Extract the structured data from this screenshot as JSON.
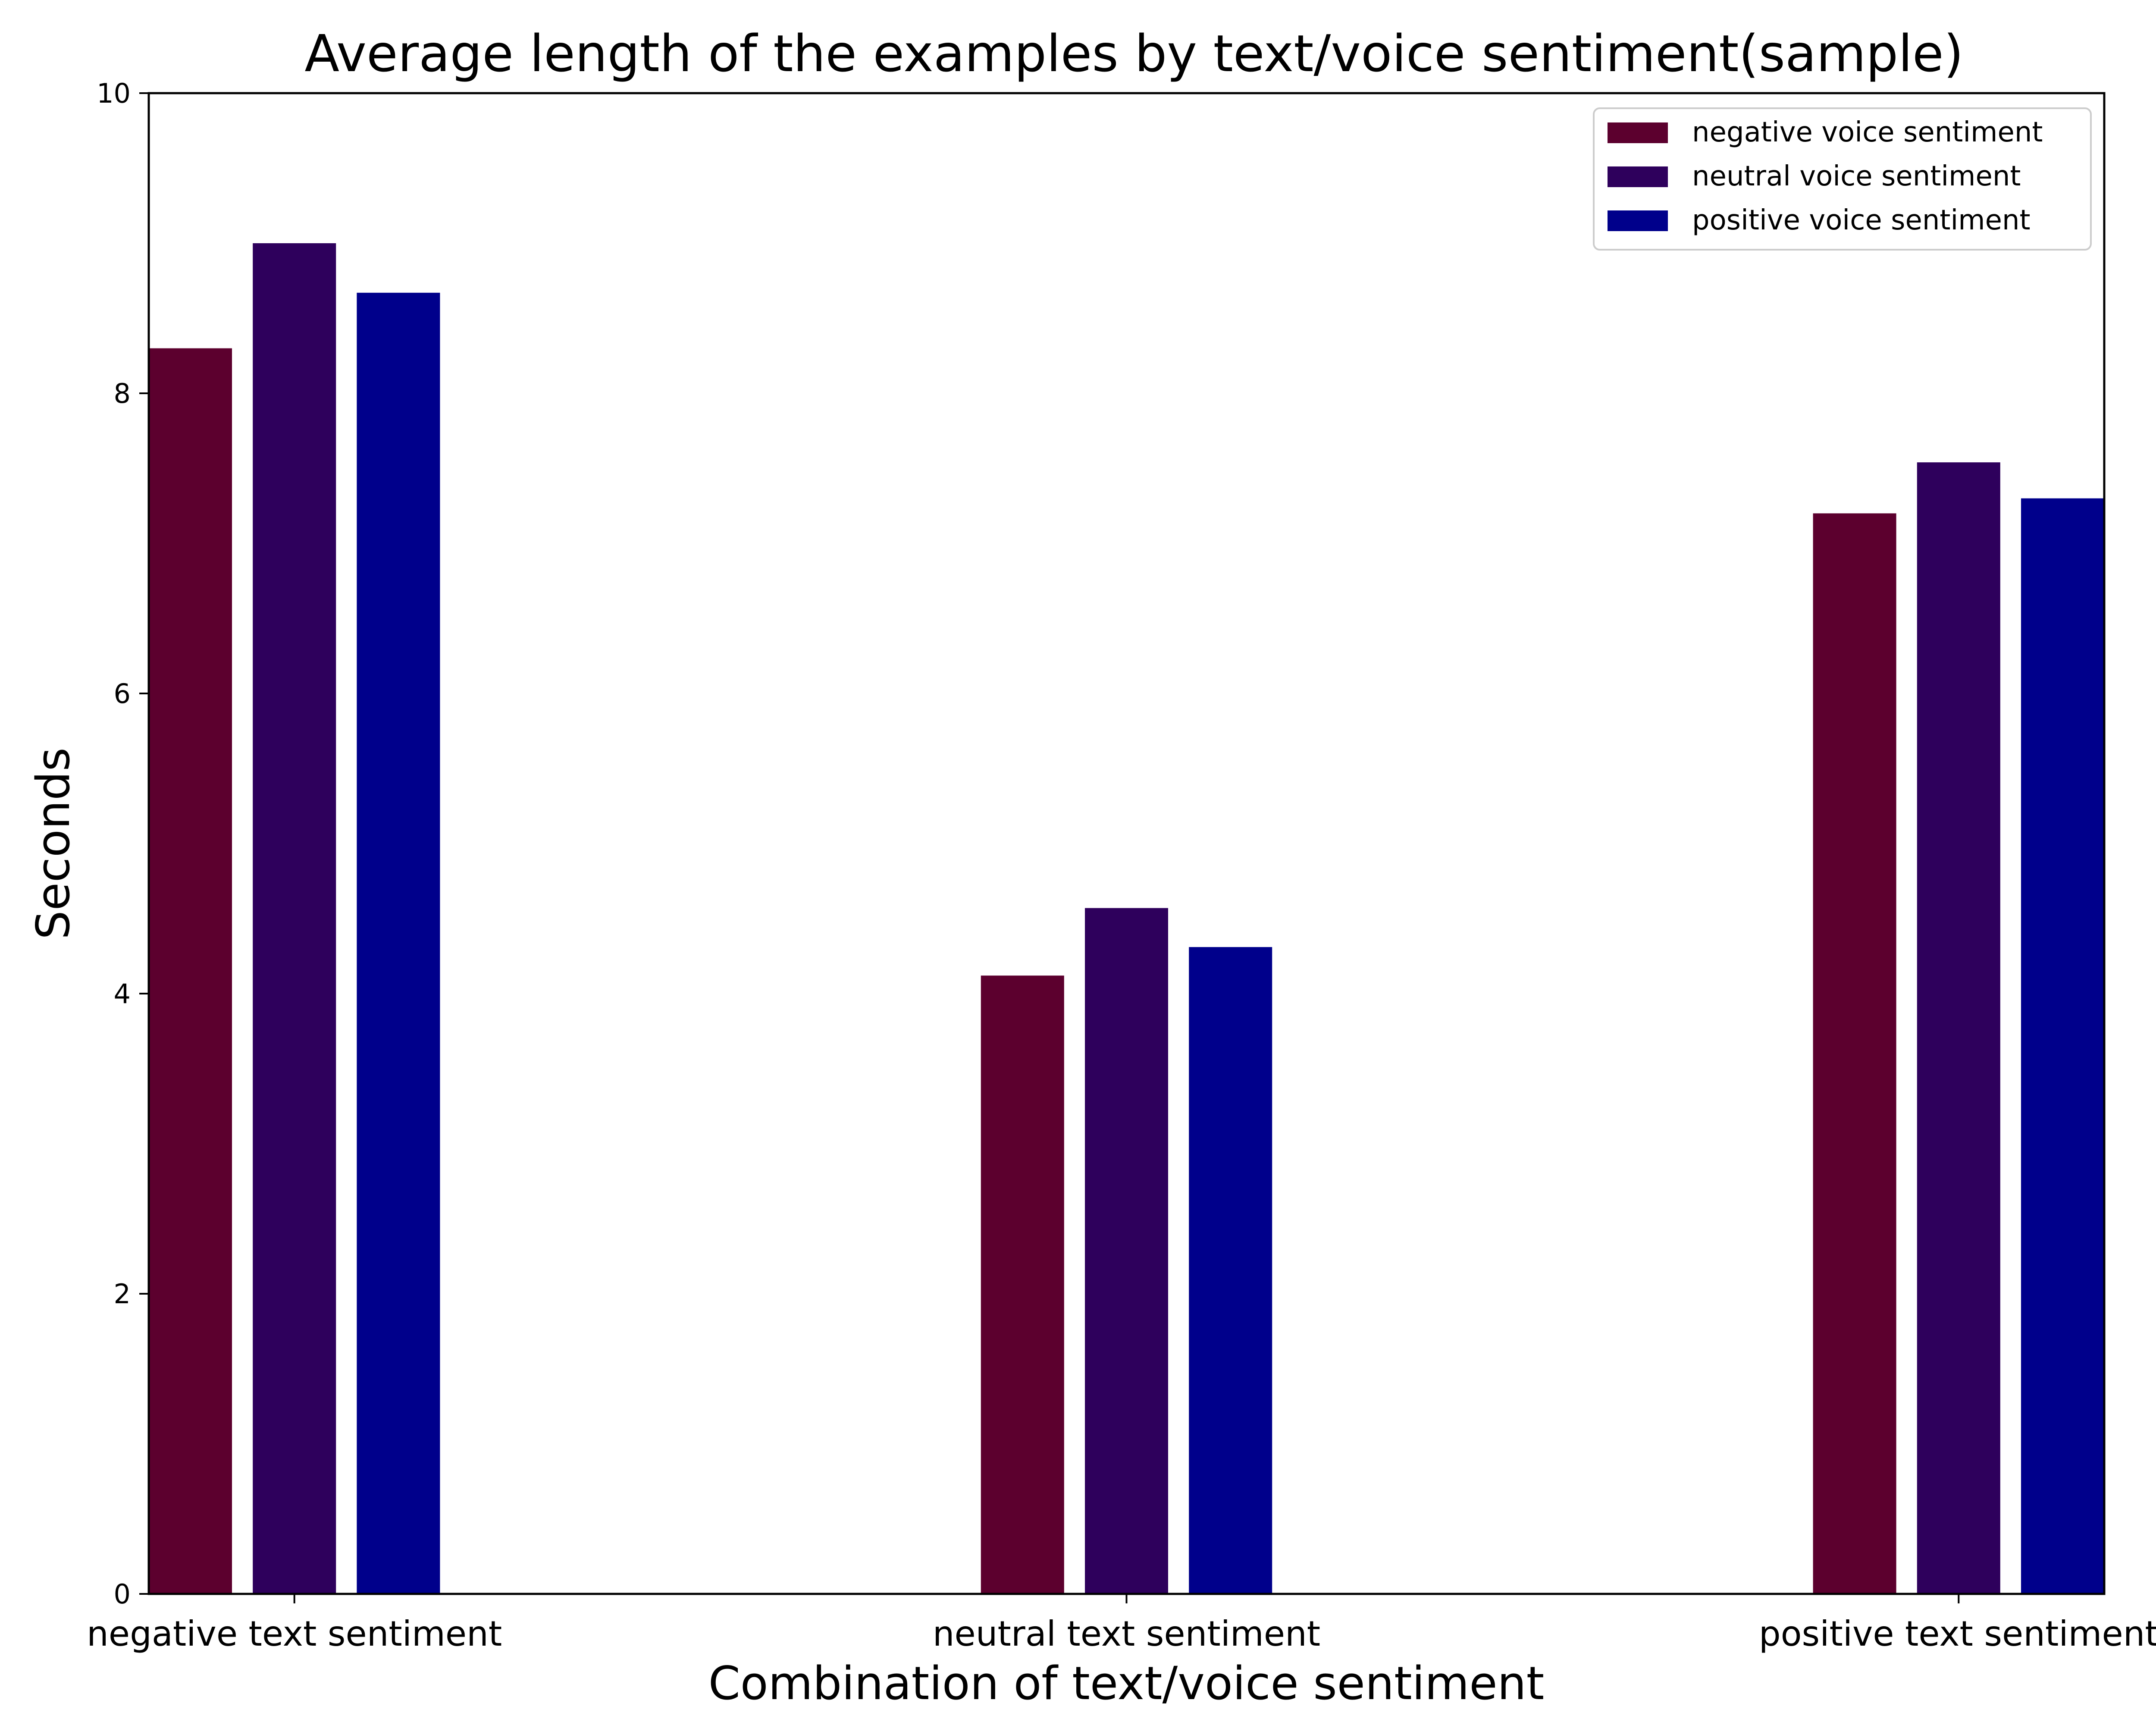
{
  "chart_data": {
    "type": "bar",
    "title": "Average length of the examples by text/voice sentiment(sample)",
    "xlabel": "Combination of text/voice sentiment",
    "ylabel": "Seconds",
    "ylim": [
      0,
      10
    ],
    "yticks": [
      "0",
      "2",
      "4",
      "6",
      "8",
      "10"
    ],
    "grid": false,
    "legend_position": "top-right",
    "categories": [
      "negative text sentiment",
      "neutral text sentiment",
      "positive text sentiment"
    ],
    "series": [
      {
        "name": "negative voice sentiment",
        "color": "#5c002e",
        "values": [
          8.3,
          4.12,
          7.2
        ]
      },
      {
        "name": "neutral voice sentiment",
        "color": "#2e005c",
        "values": [
          9.0,
          4.57,
          7.54
        ]
      },
      {
        "name": "positive voice sentiment",
        "color": "#00008b",
        "values": [
          8.67,
          4.31,
          7.3
        ]
      }
    ]
  }
}
